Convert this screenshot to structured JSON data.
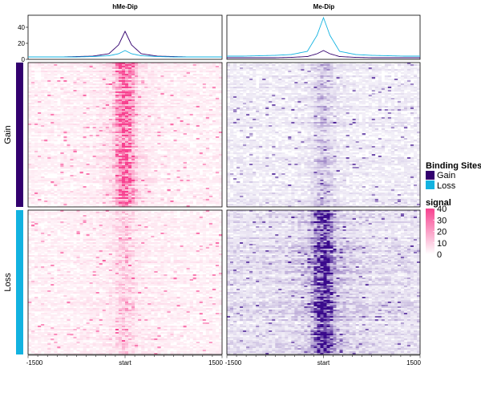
{
  "chart_data": {
    "type": "heatmap",
    "columns": [
      {
        "title": "hMe-Dip",
        "cmap": [
          "#ffffff",
          "#f7418f"
        ]
      },
      {
        "title": "Me-Dip",
        "cmap": [
          "#ffffff",
          "#3a0a8c"
        ]
      }
    ],
    "groups": [
      {
        "name": "Gain",
        "color": "#32006e"
      },
      {
        "name": "Loss",
        "color": "#12b2e0"
      }
    ],
    "profile": {
      "ylim": [
        0,
        55
      ],
      "yticks": [
        0,
        20,
        40
      ],
      "x": [
        -1500,
        -1250,
        -1000,
        -750,
        -500,
        -250,
        -100,
        0,
        100,
        250,
        500,
        750,
        1000,
        1250,
        1500
      ],
      "series": [
        {
          "column": "hMe-Dip",
          "group": "Gain",
          "values": [
            3,
            3,
            3,
            3.5,
            4,
            7,
            18,
            35,
            18,
            7,
            4,
            3.5,
            3,
            3,
            3
          ]
        },
        {
          "column": "hMe-Dip",
          "group": "Loss",
          "values": [
            3,
            3,
            3,
            3,
            3.5,
            4.5,
            7,
            11,
            7,
            4.5,
            3.5,
            3,
            3,
            3,
            3
          ]
        },
        {
          "column": "Me-Dip",
          "group": "Gain",
          "values": [
            2,
            2,
            2,
            2,
            2.5,
            3.5,
            7,
            11,
            7,
            3.5,
            2.5,
            2,
            2,
            2,
            2
          ]
        },
        {
          "column": "Me-Dip",
          "group": "Loss",
          "values": [
            4,
            4,
            4.5,
            5,
            6,
            10,
            30,
            52,
            30,
            10,
            6,
            5,
            4.5,
            4,
            4
          ]
        }
      ]
    },
    "heatmap_intensity": {
      "x": [
        -1500,
        -1000,
        -500,
        -200,
        -100,
        0,
        100,
        200,
        500,
        1000,
        1500
      ],
      "hMe-Dip": {
        "Gain": [
          3,
          3,
          3.5,
          6,
          22,
          34,
          22,
          6,
          3.5,
          3,
          3
        ],
        "Loss": [
          3,
          3,
          3.5,
          4.5,
          8,
          11,
          8,
          4.5,
          3.5,
          3,
          3
        ]
      },
      "Me-Dip": {
        "Gain": [
          3,
          3,
          3,
          4,
          7,
          10,
          7,
          4,
          3,
          3,
          3
        ],
        "Loss": [
          5,
          5,
          6,
          9,
          28,
          40,
          28,
          9,
          6,
          5,
          5
        ]
      }
    },
    "xaxis": {
      "ticks": [
        -1500,
        0,
        1500
      ],
      "tick_labels": [
        "-1500",
        "start",
        "1500"
      ]
    },
    "legend": {
      "position": "right",
      "binding_title": "Binding Sites",
      "binding_entries": [
        "Gain",
        "Loss"
      ],
      "signal_title": "signal",
      "signal_ticks": [
        0,
        10,
        20,
        30,
        40
      ],
      "signal_tick_labels": [
        "0",
        "10",
        "20",
        "30",
        "40"
      ],
      "signal_range": [
        0,
        40
      ]
    }
  }
}
